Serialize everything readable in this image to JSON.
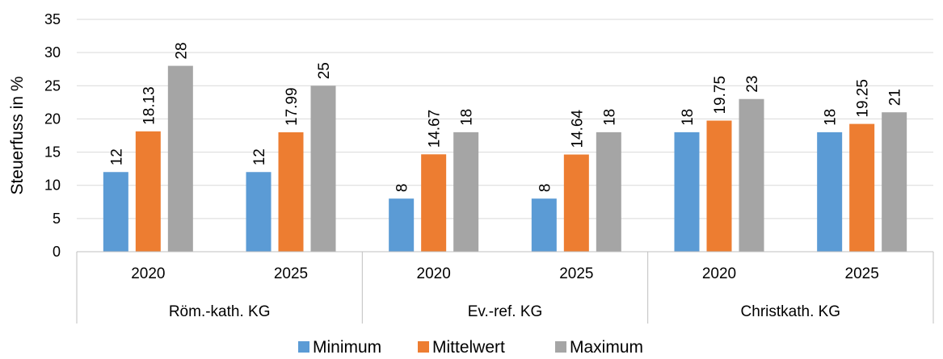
{
  "chart_data": {
    "type": "bar",
    "title": "",
    "ylabel": "Steuerfuss in %",
    "xlabel": "",
    "ylim": [
      0,
      35
    ],
    "yticks": [
      0,
      5,
      10,
      15,
      20,
      25,
      30,
      35
    ],
    "grid": true,
    "legend_position": "bottom",
    "groups": [
      {
        "label": "Röm.-kath. KG",
        "categories": [
          "2020",
          "2025"
        ]
      },
      {
        "label": "Ev.-ref. KG",
        "categories": [
          "2020",
          "2025"
        ]
      },
      {
        "label": "Christkath. KG",
        "categories": [
          "2020",
          "2025"
        ]
      }
    ],
    "categories": [
      "2020",
      "2025",
      "2020",
      "2025",
      "2020",
      "2025"
    ],
    "series": [
      {
        "name": "Minimum",
        "color": "#5b9bd5",
        "values": [
          12,
          12,
          8,
          8,
          18,
          18
        ]
      },
      {
        "name": "Mittelwert",
        "color": "#ed7d31",
        "values": [
          18.13,
          17.99,
          14.67,
          14.64,
          19.75,
          19.25
        ]
      },
      {
        "name": "Maximum",
        "color": "#a5a5a5",
        "values": [
          28,
          25,
          18,
          18,
          23,
          21
        ]
      }
    ]
  }
}
